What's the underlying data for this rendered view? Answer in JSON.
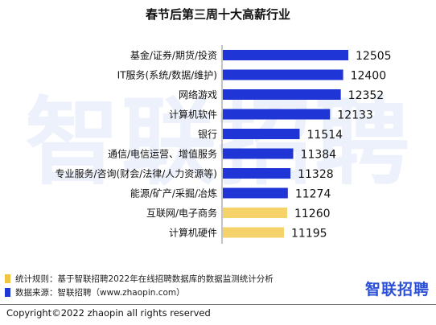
{
  "colors": {
    "bar_blue": "#1f35d6",
    "bar_yellow": "#f5d36a",
    "note_yellow": "#f0c544",
    "note_blue": "#2038d3",
    "brand": "#2b4fd6",
    "watermark": "#edf1fb"
  },
  "watermark": "智联招聘",
  "chart_data": {
    "type": "bar",
    "orientation": "horizontal",
    "title": "春节后第三周十大高薪行业",
    "categories": [
      "基金/证券/期货/投资",
      "IT服务(系统/数据/维护)",
      "网络游戏",
      "计算机软件",
      "银行",
      "通信/电信运营、增值服务",
      "专业服务/咨询(财会/法律/人力资源等)",
      "能源/矿产/采掘/冶炼",
      "互联网/电子商务",
      "计算机硬件"
    ],
    "values": [
      12505,
      12400,
      12352,
      12133,
      11514,
      11384,
      11328,
      11274,
      11260,
      11195
    ],
    "bar_colors": [
      "blue",
      "blue",
      "blue",
      "blue",
      "blue",
      "blue",
      "blue",
      "blue",
      "yellow",
      "yellow"
    ],
    "data_labels": [
      "12505",
      "12400",
      "12352",
      "12133",
      "11514",
      "11384",
      "11328",
      "11274",
      "11260",
      "11195"
    ],
    "xlabel": "",
    "ylabel": "",
    "grid": false,
    "axis_line": "left"
  },
  "notes": [
    {
      "text": "统计规则：基于智联招聘2022年在线招聘数据库的数据监测统计分析",
      "color": "#f0c544"
    },
    {
      "text": "数据来源：智联招聘（www.zhaopin.com）",
      "color": "#2038d3"
    }
  ],
  "brand": "智联招聘",
  "copyright": "Copyright©2022 zhaopin all rights reserved"
}
